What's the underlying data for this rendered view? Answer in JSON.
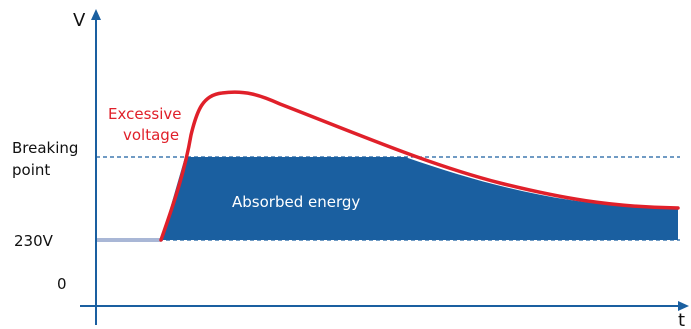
{
  "labels": {
    "y_axis": "V",
    "x_axis": "t",
    "breaking_point_line1": "Breaking",
    "breaking_point_line2": "point",
    "nominal_voltage": "230V",
    "zero": "0",
    "excessive_line1": "Excessive",
    "excessive_line2": "voltage",
    "absorbed_energy": "Absorbed energy"
  },
  "colors": {
    "axis": "#1a5fa0",
    "curve": "#e0202a",
    "energy_fill": "#1a5fa0",
    "baseline": "#a9b7d6",
    "dashed": "#1a5fa0",
    "excessive_text": "#e0202a"
  },
  "icons": {
    "y_axis_arrow": "arrow-up-icon",
    "x_axis_arrow": "arrow-right-icon"
  }
}
